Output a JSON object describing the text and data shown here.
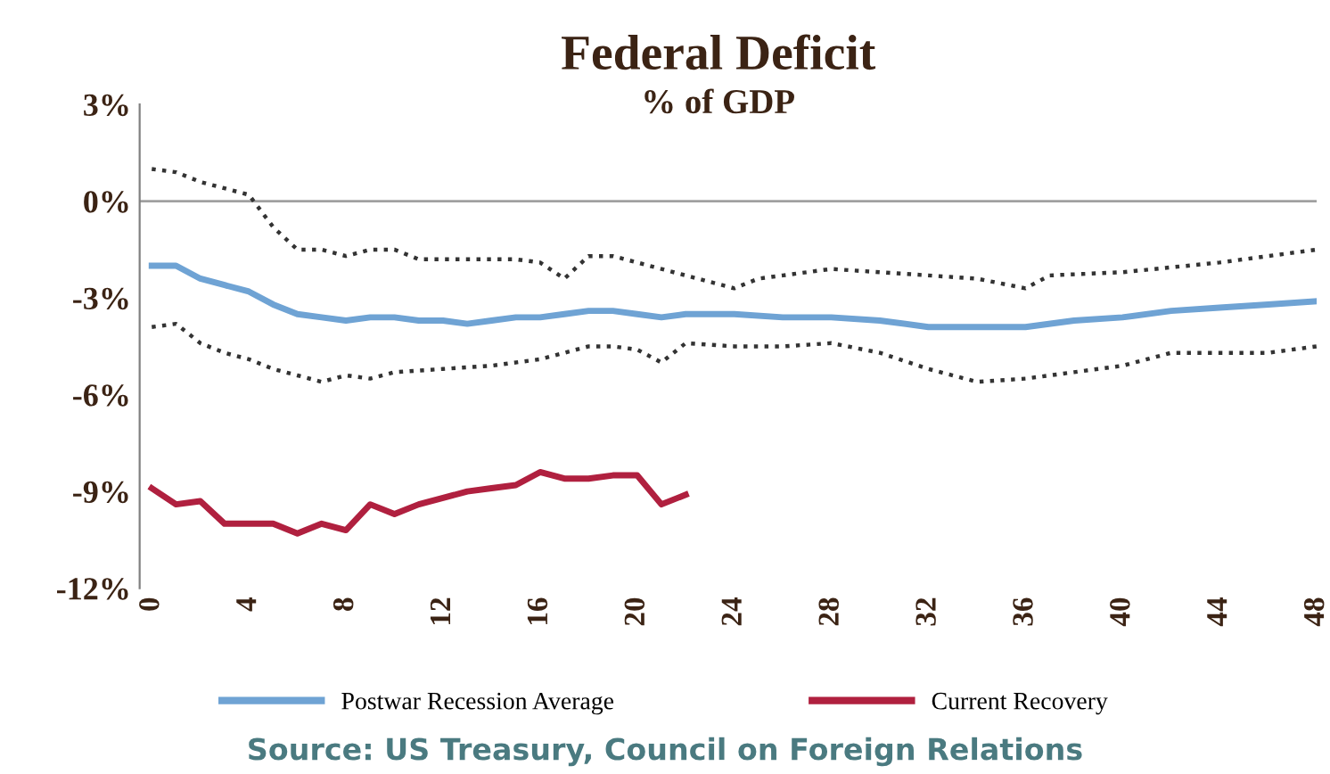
{
  "chart_data": {
    "type": "line",
    "title": "Federal Deficit",
    "subtitle": "% of GDP",
    "annotations": [
      "Source: US Treasury, Council on Foreign Relations"
    ],
    "xlim": [
      -0.5,
      48
    ],
    "xticks": [
      0,
      4,
      8,
      12,
      16,
      20,
      24,
      28,
      32,
      36,
      40,
      44,
      48
    ],
    "ylim": [
      -12,
      3
    ],
    "yticks": [
      {
        "value": 3,
        "label": "3%"
      },
      {
        "value": 0,
        "label": "0%"
      },
      {
        "value": -3,
        "label": "-3%"
      },
      {
        "value": -6,
        "label": "-6%"
      },
      {
        "value": -9,
        "label": "-9%"
      },
      {
        "value": -12,
        "label": "-12%"
      }
    ],
    "grid": false,
    "legend": "bottom",
    "marker": "none",
    "ref_lines": [
      {
        "axis": "y",
        "value": 0,
        "color": "#a0a0a0"
      }
    ],
    "series": [
      {
        "color": "#333333",
        "line_style": "dotted",
        "x": [
          0,
          1,
          2,
          3,
          4,
          5,
          6,
          7,
          8,
          9,
          10,
          11,
          12,
          13,
          14,
          15,
          16,
          17,
          18,
          19,
          20,
          21,
          22,
          23,
          24,
          25,
          26,
          28,
          30,
          32,
          34,
          36,
          37,
          40,
          44,
          48
        ],
        "values": [
          1.0,
          0.9,
          0.6,
          0.4,
          0.2,
          -0.8,
          -1.5,
          -1.5,
          -1.7,
          -1.5,
          -1.5,
          -1.8,
          -1.8,
          -1.8,
          -1.8,
          -1.8,
          -1.9,
          -2.4,
          -1.7,
          -1.7,
          -1.9,
          -2.1,
          -2.3,
          -2.5,
          -2.7,
          -2.4,
          -2.3,
          -2.1,
          -2.2,
          -2.3,
          -2.4,
          -2.7,
          -2.3,
          -2.2,
          -1.9,
          -1.5
        ]
      },
      {
        "color": "#333333",
        "line_style": "dotted",
        "x": [
          0,
          1,
          2,
          3,
          4,
          5,
          6,
          7,
          8,
          9,
          10,
          12,
          14,
          16,
          17,
          18,
          19,
          20,
          21,
          22,
          24,
          26,
          28,
          30,
          32,
          34,
          36,
          38,
          40,
          42,
          44,
          46,
          48
        ],
        "values": [
          -3.9,
          -3.8,
          -4.4,
          -4.7,
          -4.9,
          -5.2,
          -5.4,
          -5.6,
          -5.4,
          -5.5,
          -5.3,
          -5.2,
          -5.1,
          -4.9,
          -4.7,
          -4.5,
          -4.5,
          -4.6,
          -5.0,
          -4.4,
          -4.5,
          -4.5,
          -4.4,
          -4.7,
          -5.2,
          -5.6,
          -5.5,
          -5.3,
          -5.1,
          -4.7,
          -4.7,
          -4.7,
          -4.5
        ]
      },
      {
        "name": "Postwar Recession Average",
        "color": "#6fa3d4",
        "line_style": "solid",
        "x": [
          0,
          1,
          2,
          3,
          4,
          5,
          6,
          7,
          8,
          9,
          10,
          11,
          12,
          13,
          14,
          15,
          16,
          17,
          18,
          19,
          20,
          21,
          22,
          24,
          26,
          28,
          30,
          32,
          34,
          36,
          38,
          40,
          42,
          44,
          46,
          48
        ],
        "values": [
          -2.0,
          -2.0,
          -2.4,
          -2.6,
          -2.8,
          -3.2,
          -3.5,
          -3.6,
          -3.7,
          -3.6,
          -3.6,
          -3.7,
          -3.7,
          -3.8,
          -3.7,
          -3.6,
          -3.6,
          -3.5,
          -3.4,
          -3.4,
          -3.5,
          -3.6,
          -3.5,
          -3.5,
          -3.6,
          -3.6,
          -3.7,
          -3.9,
          -3.9,
          -3.9,
          -3.7,
          -3.6,
          -3.4,
          -3.3,
          -3.2,
          -3.1
        ]
      },
      {
        "name": "Current Recovery",
        "color": "#b0203f",
        "line_style": "solid",
        "x": [
          0,
          1,
          2,
          3,
          4,
          5,
          6,
          7,
          8,
          9,
          10,
          11,
          12,
          13,
          14,
          15,
          16,
          17,
          18,
          19,
          20,
          21,
          22
        ],
        "values": [
          -8.9,
          -9.4,
          -9.3,
          -10.0,
          -10.0,
          -10.0,
          -10.3,
          -10.0,
          -10.2,
          -9.4,
          -9.7,
          -9.4,
          -9.2,
          -9.0,
          -8.9,
          -8.8,
          -8.4,
          -8.6,
          -8.6,
          -8.5,
          -8.5,
          -9.4,
          -9.1
        ]
      }
    ]
  }
}
